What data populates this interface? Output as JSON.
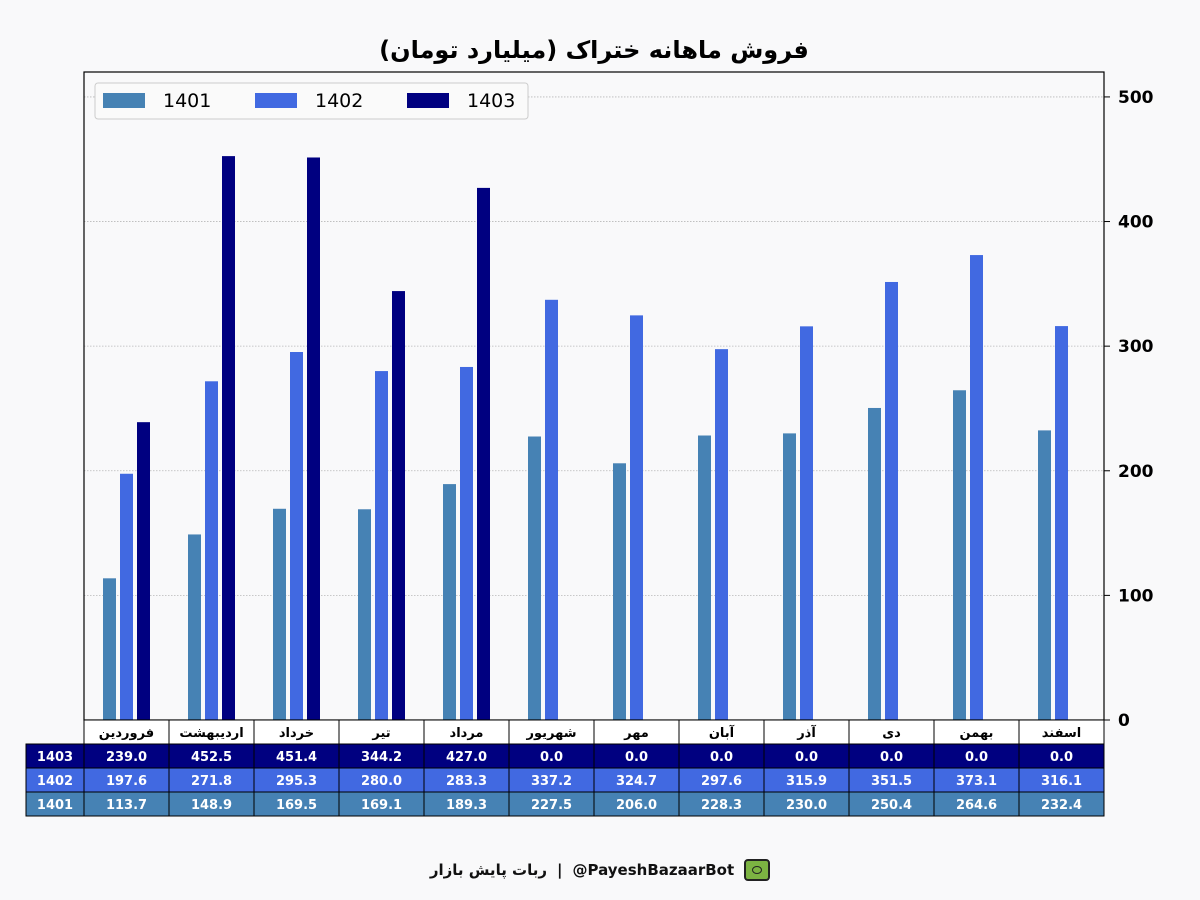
{
  "chart_data": {
    "type": "bar",
    "title": "فروش ماهانه ختراک (میلیارد تومان)",
    "categories": [
      "فروردین",
      "اردیبهشت",
      "خرداد",
      "تیر",
      "مرداد",
      "شهریور",
      "مهر",
      "آبان",
      "آذر",
      "دی",
      "بهمن",
      "اسفند"
    ],
    "series": [
      {
        "name": "1401",
        "color": "#4682b4",
        "values": [
          113.7,
          148.9,
          169.5,
          169.1,
          189.3,
          227.5,
          206.0,
          228.3,
          230.0,
          250.4,
          264.6,
          232.4
        ]
      },
      {
        "name": "1402",
        "color": "#4169e1",
        "values": [
          197.6,
          271.8,
          295.3,
          280.0,
          283.3,
          337.2,
          324.7,
          297.6,
          315.9,
          351.5,
          373.1,
          316.1
        ]
      },
      {
        "name": "1403",
        "color": "#000080",
        "values": [
          239.0,
          452.5,
          451.4,
          344.2,
          427.0,
          0.0,
          0.0,
          0.0,
          0.0,
          0.0,
          0.0,
          0.0
        ]
      }
    ],
    "table_rows": [
      {
        "name": "1403",
        "cells": [
          "239.0",
          "452.5",
          "451.4",
          "344.2",
          "427.0",
          "0.0",
          "0.0",
          "0.0",
          "0.0",
          "0.0",
          "0.0",
          "0.0"
        ]
      },
      {
        "name": "1402",
        "cells": [
          "197.6",
          "271.8",
          "295.3",
          "280.0",
          "283.3",
          "337.2",
          "324.7",
          "297.6",
          "315.9",
          "351.5",
          "373.1",
          "316.1"
        ]
      },
      {
        "name": "1401",
        "cells": [
          "113.7",
          "148.9",
          "169.5",
          "169.1",
          "189.3",
          "227.5",
          "206.0",
          "228.3",
          "230.0",
          "250.4",
          "264.6",
          "232.4"
        ]
      }
    ],
    "yticks": [
      "0",
      "100",
      "200",
      "300",
      "400",
      "500"
    ],
    "ylim": [
      0,
      520
    ],
    "y_axis_side": "right",
    "grid": "horizontal dotted",
    "legend": {
      "placement": "top-left",
      "entries": [
        "1401",
        "1402",
        "1403"
      ]
    }
  },
  "footer": {
    "bot_label": "ربات پایش بازار",
    "separator": "|",
    "handle": "@PayeshBazaarBot",
    "icon": "bot-icon"
  }
}
